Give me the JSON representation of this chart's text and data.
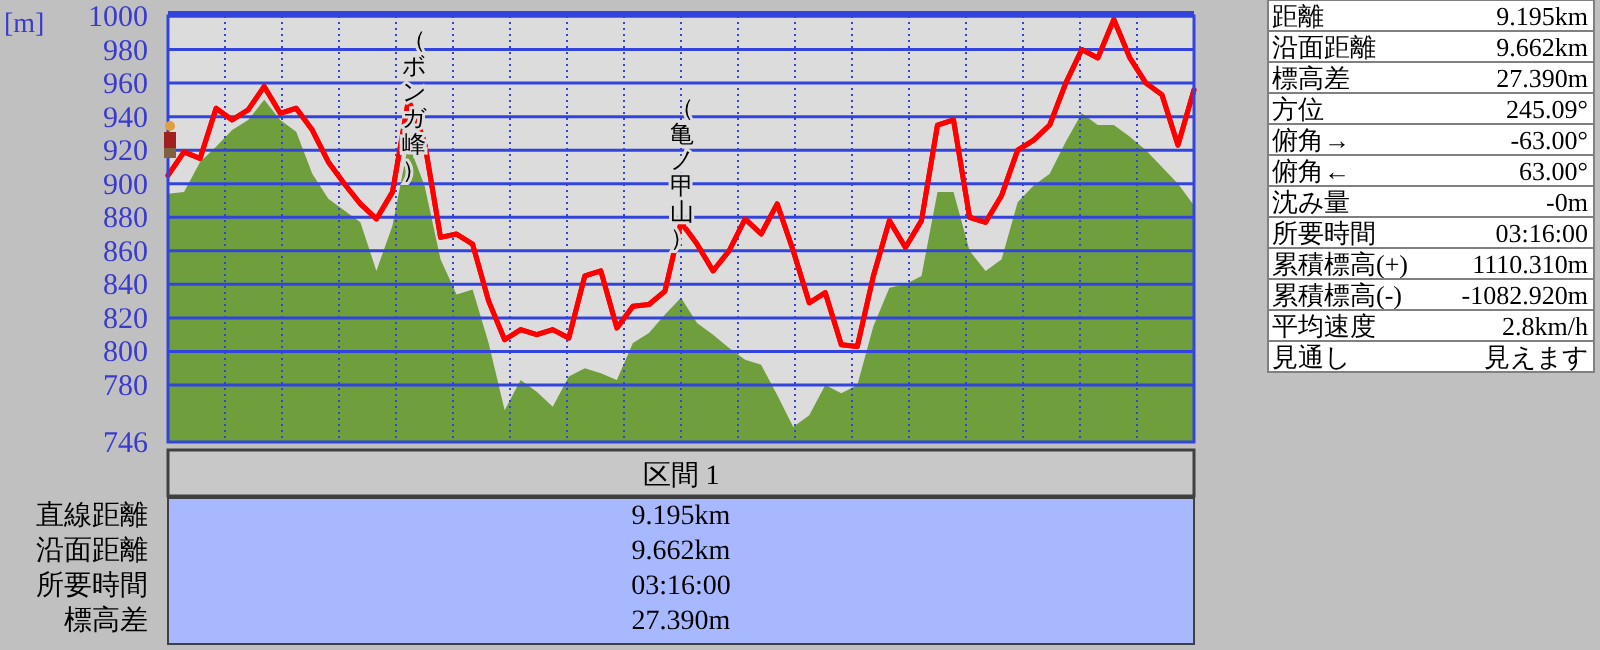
{
  "chart_data": [
    {
      "type": "line",
      "ylabel": "[m]",
      "ylim": [
        746,
        1000
      ],
      "yticks": [
        746,
        780,
        800,
        820,
        840,
        860,
        880,
        900,
        920,
        940,
        960,
        980,
        1000
      ],
      "grid": true,
      "categories": [
        null,
        null,
        null,
        null,
        null,
        null,
        null,
        null,
        null,
        null,
        null,
        null,
        null,
        null,
        null,
        null,
        null,
        null,
        null,
        null,
        null,
        null,
        null,
        null,
        null,
        null,
        null,
        null,
        null,
        null,
        null,
        null,
        null,
        null,
        null,
        null,
        null,
        null,
        null,
        null,
        null,
        null,
        null,
        null,
        null,
        null,
        null,
        null,
        null,
        null,
        null,
        null,
        null,
        null,
        null,
        null,
        null,
        null,
        null,
        null,
        null,
        null,
        null,
        null,
        null
      ],
      "series": [
        {
          "type": "area",
          "color": "#6f9f3c",
          "values": [
            894,
            895,
            913,
            922,
            932,
            938,
            950,
            938,
            931,
            906,
            891,
            884,
            877,
            848,
            875,
            924,
            899,
            855,
            834,
            837,
            805,
            765,
            783,
            776,
            767,
            785,
            790,
            787,
            783,
            805,
            811,
            822,
            832,
            817,
            810,
            802,
            795,
            792,
            774,
            755,
            762,
            780,
            775,
            780,
            815,
            838,
            840,
            845,
            895,
            895,
            860,
            848,
            855,
            889,
            899,
            906,
            925,
            942,
            935,
            935,
            928,
            920,
            910,
            900,
            887
          ]
        },
        {
          "type": "line",
          "color": "#ff0000",
          "values": [
            905,
            919,
            915,
            945,
            938,
            944,
            958,
            942,
            945,
            932,
            913,
            900,
            888,
            879,
            895,
            950,
            925,
            868,
            870,
            864,
            830,
            807,
            813,
            810,
            813,
            808,
            845,
            848,
            814,
            827,
            828,
            836,
            877,
            864,
            848,
            860,
            879,
            870,
            888,
            860,
            829,
            835,
            804,
            803,
            845,
            878,
            862,
            878,
            935,
            938,
            880,
            877,
            893,
            920,
            926,
            935,
            960,
            980,
            975,
            998,
            975,
            960,
            953,
            923,
            956
          ]
        }
      ],
      "annotations": [
        "（ボンガ峰）",
        "（亀ノ甲山）"
      ]
    },
    {
      "type": "other",
      "annotations": [
        "距離",
        "9.195km",
        "沿面距離",
        "9.662km",
        "標高差",
        "27.390m",
        "方位",
        "245.09°",
        "俯角→",
        "-63.00°",
        "俯角←",
        "63.00°",
        "沈み量",
        "-0m",
        "所要時間",
        "03:16:00",
        "累積標高(+)",
        "1110.310m",
        "累積標高(-)",
        "-1082.920m",
        "平均速度",
        "2.8km/h",
        "見通し",
        "見えます"
      ]
    },
    {
      "type": "other",
      "title": "区間 1",
      "annotations": [
        "直線距離",
        "9.195km",
        "沿面距離",
        "9.662km",
        "所要時間",
        "03:16:00",
        "標高差",
        "27.390m"
      ]
    }
  ]
}
